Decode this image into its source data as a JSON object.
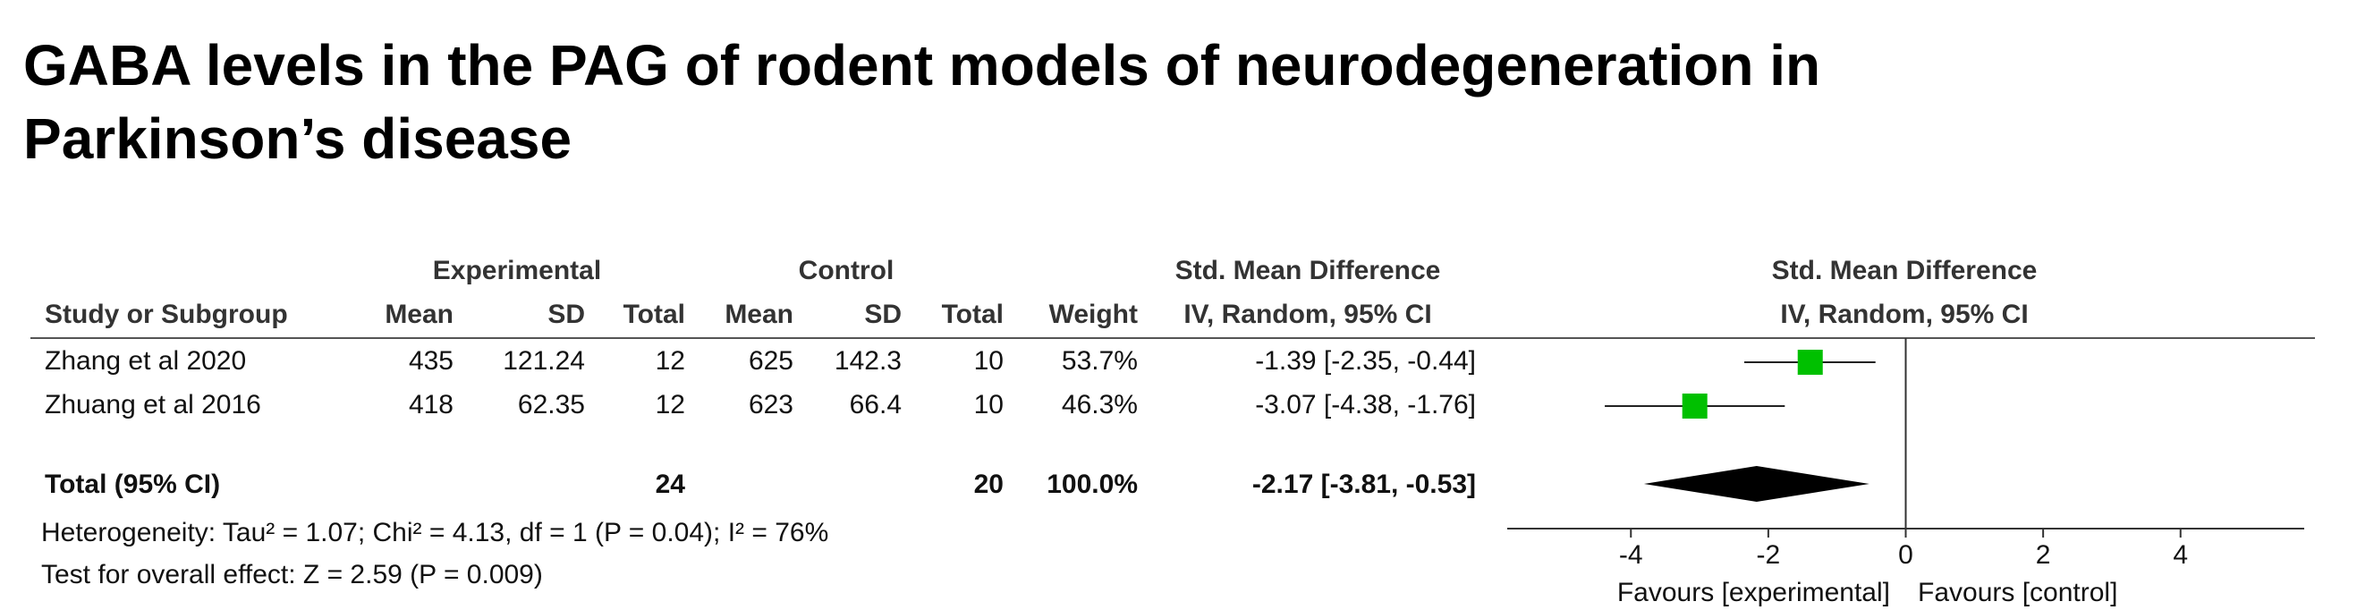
{
  "title": "GABA levels in the PAG of rodent models of neurodegeneration in Parkinson’s disease",
  "table": {
    "group_headers": [
      "Experimental",
      "Control",
      "Std. Mean Difference"
    ],
    "subheader": "IV, Random, 95% CI",
    "columns": [
      "Study or Subgroup",
      "Mean",
      "SD",
      "Total",
      "Mean",
      "SD",
      "Total",
      "Weight"
    ],
    "rows": [
      [
        "Zhang et al 2020",
        435,
        121.24,
        12,
        625,
        142.3,
        10,
        "53.7%",
        "-1.39 [-2.35, -0.44]"
      ],
      [
        "Zhuang et al 2016",
        418,
        62.35,
        12,
        623,
        66.4,
        10,
        "46.3%",
        "-3.07 [-4.38, -1.76]"
      ]
    ],
    "total_row": {
      "label": "Total (95% CI)",
      "experimental_total": 24,
      "control_total": 20,
      "weight": "100.0%",
      "estimate": "-2.17 [-3.81, -0.53]"
    },
    "heterogeneity": "Heterogeneity: Tau² = 1.07; Chi² = 4.13, df = 1 (P = 0.04); I² = 76%",
    "overall_effect": "Test for overall effect: Z = 2.59 (P = 0.009)"
  },
  "chart_data": {
    "type": "forest",
    "title": "Std. Mean Difference",
    "subtitle": "IV, Random, 95% CI",
    "values": [
      -1.39,
      -3.07
    ],
    "ci_low": [
      -2.35,
      -4.38
    ],
    "ci_high": [
      -0.44,
      -1.76
    ],
    "color": "#00c000",
    "pooled": {
      "value": -2.17,
      "low": -3.81,
      "high": -0.53,
      "color": "#000000"
    },
    "xlim": [
      -5.8,
      5.8
    ],
    "xticks": [
      -4,
      -2,
      0,
      2,
      4
    ],
    "left_label": "Favours [experimental]",
    "right_label": "Favours [control]"
  }
}
